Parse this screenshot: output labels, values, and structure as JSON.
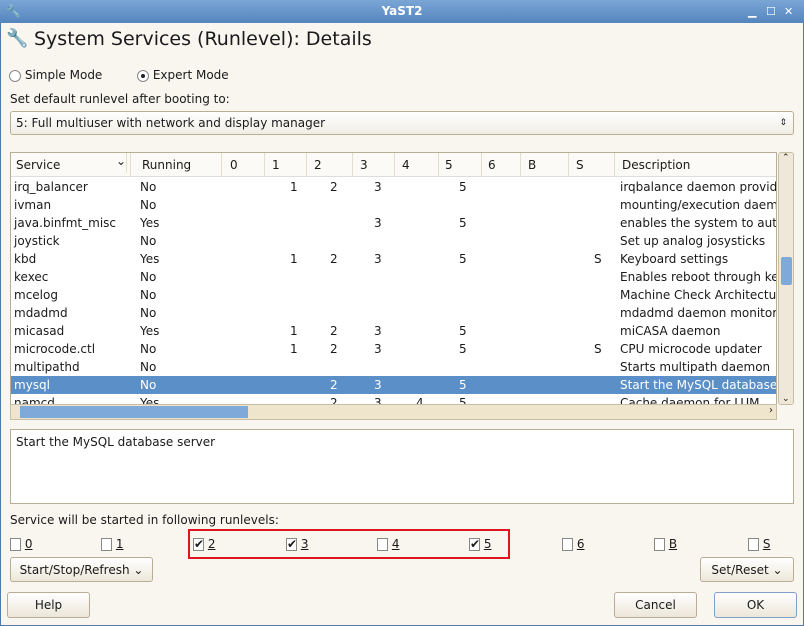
{
  "window": {
    "title": "YaST2"
  },
  "header": {
    "title": "System Services (Runlevel): Details"
  },
  "mode": {
    "simple": "Simple Mode",
    "expert": "Expert Mode",
    "selected": "expert"
  },
  "runlevel": {
    "label": "Set default runlevel after booting to:",
    "value": "5: Full multiuser with network and display manager"
  },
  "table": {
    "columns": [
      "Service",
      "Running",
      "0",
      "1",
      "2",
      "3",
      "4",
      "5",
      "6",
      "B",
      "S",
      "Description"
    ],
    "rows": [
      [
        "irq_balancer",
        "No",
        "",
        "1",
        "2",
        "3",
        "",
        "5",
        "",
        "",
        "",
        "irqbalance daemon providin"
      ],
      [
        "ivman",
        "No",
        "",
        "",
        "",
        "",
        "",
        "",
        "",
        "",
        "",
        "mounting/execution daemo"
      ],
      [
        "java.binfmt_misc",
        "Yes",
        "",
        "",
        "",
        "3",
        "",
        "5",
        "",
        "",
        "",
        "enables the system to auto"
      ],
      [
        "joystick",
        "No",
        "",
        "",
        "",
        "",
        "",
        "",
        "",
        "",
        "",
        "Set up analog josysticks"
      ],
      [
        "kbd",
        "Yes",
        "",
        "1",
        "2",
        "3",
        "",
        "5",
        "",
        "",
        "S",
        "Keyboard settings"
      ],
      [
        "kexec",
        "No",
        "",
        "",
        "",
        "",
        "",
        "",
        "",
        "",
        "",
        "Enables reboot through kex"
      ],
      [
        "mcelog",
        "No",
        "",
        "",
        "",
        "",
        "",
        "",
        "",
        "",
        "",
        "Machine Check Architectur"
      ],
      [
        "mdadmd",
        "No",
        "",
        "",
        "",
        "",
        "",
        "",
        "",
        "",
        "",
        "mdadmd daemon monitorin"
      ],
      [
        "micasad",
        "Yes",
        "",
        "1",
        "2",
        "3",
        "",
        "5",
        "",
        "",
        "",
        "miCASA daemon"
      ],
      [
        "microcode.ctl",
        "No",
        "",
        "1",
        "2",
        "3",
        "",
        "5",
        "",
        "",
        "S",
        "CPU microcode updater"
      ],
      [
        "multipathd",
        "No",
        "",
        "",
        "",
        "",
        "",
        "",
        "",
        "",
        "",
        "Starts multipath daemon"
      ],
      [
        "mysql",
        "No",
        "",
        "",
        "2",
        "3",
        "",
        "5",
        "",
        "",
        "",
        "Start the MySQL database"
      ],
      [
        "namcd",
        "Yes",
        "",
        "",
        "2",
        "3",
        "4",
        "5",
        "",
        "",
        "",
        "Cache daemon for LUM"
      ]
    ],
    "selected_row": 11
  },
  "description": "Start the MySQL database server",
  "runlevels": {
    "label": "Service will be started in following runlevels:",
    "items": [
      {
        "label": "0",
        "checked": false
      },
      {
        "label": "1",
        "checked": false
      },
      {
        "label": "2",
        "checked": true
      },
      {
        "label": "3",
        "checked": true
      },
      {
        "label": "4",
        "checked": false
      },
      {
        "label": "5",
        "checked": true
      },
      {
        "label": "6",
        "checked": false
      },
      {
        "label": "B",
        "checked": false
      },
      {
        "label": "S",
        "checked": false
      }
    ]
  },
  "buttons": {
    "start_stop": "Start/Stop/Refresh",
    "set_reset": "Set/Reset",
    "help": "Help",
    "cancel": "Cancel",
    "ok": "OK"
  },
  "colors": {
    "selection": "#5b8fc8",
    "highlight_box": "#e0161e",
    "titlebar": "#6a98cc"
  }
}
